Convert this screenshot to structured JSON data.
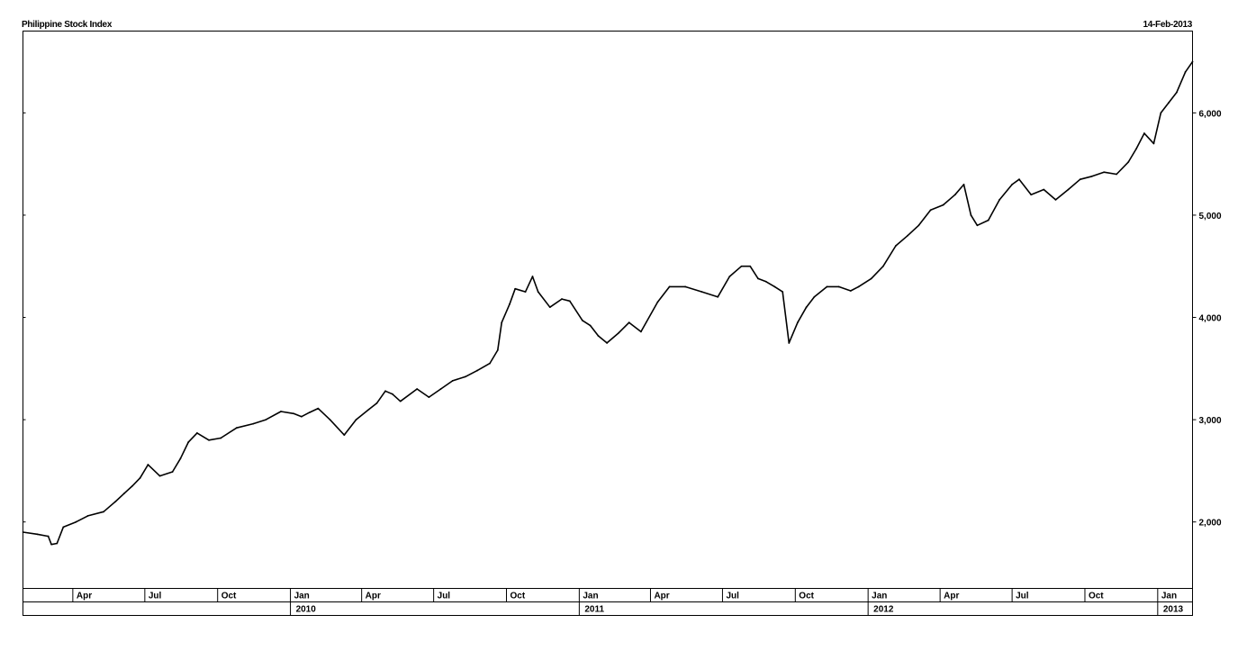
{
  "header": {
    "title": "Philippine Stock Index",
    "date": "14-Feb-2013"
  },
  "chart_data": {
    "type": "line",
    "title": "Philippine Stock Index",
    "date_label": "14-Feb-2013",
    "xlabel": "",
    "ylabel": "",
    "ylim": [
      1350,
      6800
    ],
    "xlim": [
      "2009-01-28",
      "2013-02-14"
    ],
    "y_ticks": [
      2000,
      3000,
      4000,
      5000,
      6000
    ],
    "y_tick_labels": [
      "2,000",
      "3,000",
      "4,000",
      "5,000",
      "6,000"
    ],
    "month_ticks": [
      {
        "date": "2009-04-01",
        "label": "Apr"
      },
      {
        "date": "2009-07-01",
        "label": "Jul"
      },
      {
        "date": "2009-10-01",
        "label": "Oct"
      },
      {
        "date": "2010-01-01",
        "label": "Jan"
      },
      {
        "date": "2010-04-01",
        "label": "Apr"
      },
      {
        "date": "2010-07-01",
        "label": "Jul"
      },
      {
        "date": "2010-10-01",
        "label": "Oct"
      },
      {
        "date": "2011-01-01",
        "label": "Jan"
      },
      {
        "date": "2011-04-01",
        "label": "Apr"
      },
      {
        "date": "2011-07-01",
        "label": "Jul"
      },
      {
        "date": "2011-10-01",
        "label": "Oct"
      },
      {
        "date": "2012-01-01",
        "label": "Jan"
      },
      {
        "date": "2012-04-01",
        "label": "Apr"
      },
      {
        "date": "2012-07-01",
        "label": "Jul"
      },
      {
        "date": "2012-10-01",
        "label": "Oct"
      },
      {
        "date": "2013-01-01",
        "label": "Jan"
      }
    ],
    "year_ticks": [
      {
        "date": "2010-01-01",
        "label": "2010"
      },
      {
        "date": "2011-01-01",
        "label": "2011"
      },
      {
        "date": "2012-01-01",
        "label": "2012"
      },
      {
        "date": "2013-01-01",
        "label": "2013"
      }
    ],
    "grid": false,
    "series": [
      {
        "x": [
          "2009-01-28",
          "2009-02-15",
          "2009-03-01",
          "2009-03-05",
          "2009-03-12",
          "2009-03-20",
          "2009-04-05",
          "2009-04-20",
          "2009-05-10",
          "2009-05-25",
          "2009-06-05",
          "2009-06-15",
          "2009-06-25",
          "2009-07-05",
          "2009-07-20",
          "2009-08-05",
          "2009-08-15",
          "2009-08-25",
          "2009-09-05",
          "2009-09-20",
          "2009-10-05",
          "2009-10-25",
          "2009-11-15",
          "2009-12-01",
          "2009-12-20",
          "2010-01-05",
          "2010-01-15",
          "2010-01-25",
          "2010-02-05",
          "2010-02-20",
          "2010-03-10",
          "2010-03-25",
          "2010-04-10",
          "2010-04-20",
          "2010-05-01",
          "2010-05-10",
          "2010-05-20",
          "2010-06-10",
          "2010-06-25",
          "2010-07-10",
          "2010-07-25",
          "2010-08-10",
          "2010-08-25",
          "2010-09-10",
          "2010-09-20",
          "2010-09-25",
          "2010-10-05",
          "2010-10-12",
          "2010-10-25",
          "2010-11-03",
          "2010-11-10",
          "2010-11-25",
          "2010-12-10",
          "2010-12-20",
          "2011-01-05",
          "2011-01-15",
          "2011-01-25",
          "2011-02-05",
          "2011-02-20",
          "2011-03-05",
          "2011-03-20",
          "2011-04-10",
          "2011-04-25",
          "2011-05-15",
          "2011-06-05",
          "2011-06-25",
          "2011-07-10",
          "2011-07-25",
          "2011-08-05",
          "2011-08-15",
          "2011-08-25",
          "2011-09-05",
          "2011-09-15",
          "2011-09-23",
          "2011-10-04",
          "2011-10-15",
          "2011-10-25",
          "2011-11-10",
          "2011-11-25",
          "2011-12-10",
          "2011-12-20",
          "2012-01-05",
          "2012-01-20",
          "2012-02-05",
          "2012-02-20",
          "2012-03-05",
          "2012-03-20",
          "2012-04-05",
          "2012-04-20",
          "2012-05-01",
          "2012-05-10",
          "2012-05-18",
          "2012-06-01",
          "2012-06-15",
          "2012-07-01",
          "2012-07-10",
          "2012-07-25",
          "2012-08-10",
          "2012-08-25",
          "2012-09-10",
          "2012-09-25",
          "2012-10-10",
          "2012-10-25",
          "2012-11-10",
          "2012-11-25",
          "2012-12-05",
          "2012-12-15",
          "2012-12-27",
          "2013-01-05",
          "2013-01-15",
          "2013-01-25",
          "2013-02-05",
          "2013-02-14"
        ],
        "values": [
          1900,
          1880,
          1860,
          1780,
          1790,
          1950,
          2000,
          2060,
          2100,
          2200,
          2280,
          2350,
          2430,
          2560,
          2450,
          2490,
          2620,
          2780,
          2870,
          2800,
          2820,
          2920,
          2960,
          3000,
          3080,
          3060,
          3030,
          3070,
          3110,
          3000,
          2850,
          3000,
          3100,
          3160,
          3280,
          3250,
          3180,
          3300,
          3220,
          3300,
          3380,
          3420,
          3480,
          3550,
          3680,
          3950,
          4130,
          4280,
          4250,
          4400,
          4250,
          4100,
          4180,
          4160,
          3970,
          3920,
          3820,
          3750,
          3850,
          3950,
          3860,
          4150,
          4300,
          4300,
          4250,
          4200,
          4400,
          4500,
          4500,
          4380,
          4350,
          4300,
          4250,
          3750,
          3950,
          4100,
          4200,
          4300,
          4300,
          4260,
          4300,
          4380,
          4500,
          4700,
          4800,
          4900,
          5050,
          5100,
          5200,
          5300,
          5000,
          4900,
          4950,
          5150,
          5300,
          5350,
          5200,
          5250,
          5150,
          5250,
          5350,
          5380,
          5420,
          5400,
          5520,
          5650,
          5800,
          5700,
          6000,
          6100,
          6200,
          6400,
          6500
        ]
      }
    ]
  }
}
